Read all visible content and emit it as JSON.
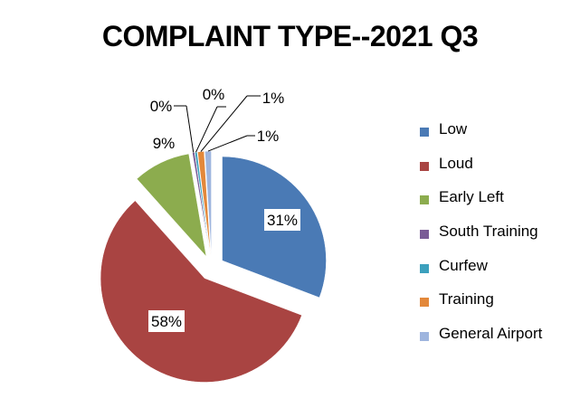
{
  "chart_data": {
    "type": "pie",
    "title": "COMPLAINT TYPE--2021 Q3",
    "categories": [
      "Low",
      "Loud",
      "Early Left",
      "South Training",
      "Curfew",
      "Training",
      "General Airport"
    ],
    "values": [
      31,
      58,
      9,
      0,
      0,
      1,
      1
    ],
    "labels": [
      "31%",
      "58%",
      "9%",
      "0%",
      "0%",
      "1%",
      "1%"
    ],
    "colors": [
      "#4a7ab5",
      "#a94442",
      "#8cac4e",
      "#7a5c96",
      "#3ca0bd",
      "#e3883a",
      "#9eb5de"
    ],
    "legend_position": "right"
  }
}
